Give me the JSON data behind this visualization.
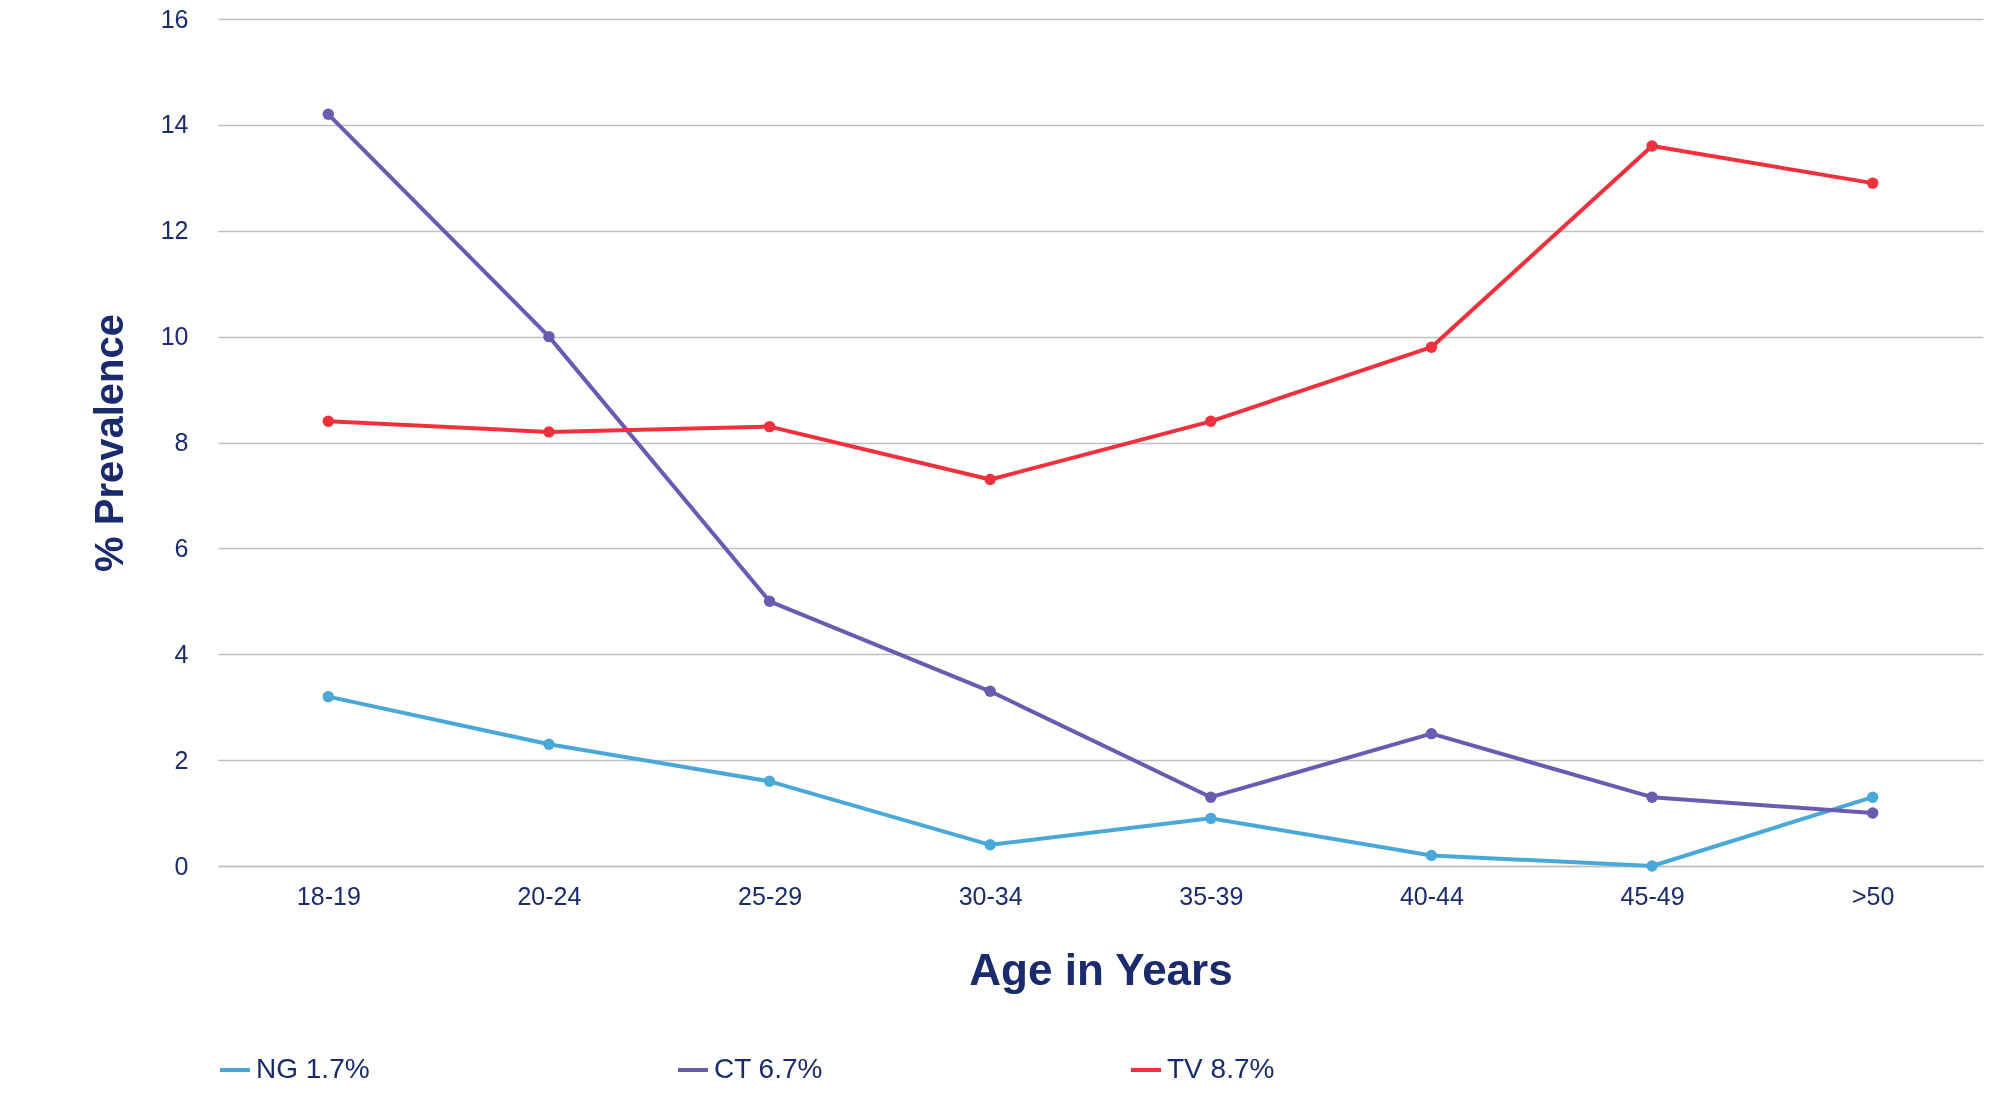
{
  "chart_data": {
    "type": "line",
    "xlabel": "Age in Years",
    "ylabel": "% Prevalence",
    "categories": [
      "18-19",
      "20-24",
      "25-29",
      "30-34",
      "35-39",
      "40-44",
      "45-49",
      ">50"
    ],
    "series": [
      {
        "name": "NG 1.7%",
        "color": "#4aa8d8",
        "values": [
          3.2,
          2.3,
          1.6,
          0.4,
          0.9,
          0.2,
          0.0,
          1.3
        ]
      },
      {
        "name": "CT 6.7%",
        "color": "#6b5bb0",
        "values": [
          14.2,
          10.0,
          5.0,
          3.3,
          1.3,
          2.5,
          1.3,
          1.0
        ]
      },
      {
        "name": "TV 8.7%",
        "color": "#f0303c",
        "values": [
          8.4,
          8.2,
          8.3,
          7.3,
          8.4,
          9.8,
          13.6,
          12.9
        ]
      }
    ],
    "ylim": [
      0,
      16
    ],
    "yticks": [
      0,
      2,
      4,
      6,
      8,
      10,
      12,
      14,
      16
    ],
    "grid": "y",
    "legend": "bottom",
    "marker": "circle",
    "line_style": "solid"
  }
}
